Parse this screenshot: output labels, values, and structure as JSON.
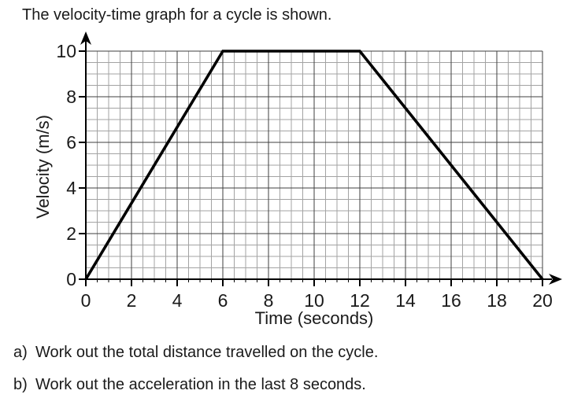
{
  "page": {
    "title": "The velocity-time graph for a cycle is shown.",
    "questions": [
      {
        "prefix": "a)",
        "text": "Work out the total distance travelled on the cycle."
      },
      {
        "prefix": "b)",
        "text": "Work out the acceleration in the last 8 seconds."
      }
    ]
  },
  "chart_data": {
    "type": "line",
    "title": "",
    "xlabel": "Time (seconds)",
    "ylabel": "Velocity (m/s)",
    "xlim": [
      0,
      20
    ],
    "ylim": [
      0,
      10
    ],
    "x_ticks": [
      0,
      2,
      4,
      6,
      8,
      10,
      12,
      14,
      16,
      18,
      20
    ],
    "y_ticks": [
      0,
      2,
      4,
      6,
      8,
      10
    ],
    "minor_step": 0.5,
    "major_step": 2,
    "grid": "major+minor",
    "legend": "none",
    "series": [
      {
        "name": "velocity",
        "points": [
          [
            0,
            0
          ],
          [
            6,
            10
          ],
          [
            12,
            10
          ],
          [
            20,
            0
          ]
        ]
      }
    ],
    "colors": {
      "line": "#000000",
      "axis": "#000000",
      "major_grid": "#3f3f3f",
      "minor_grid": "#a3a3a3",
      "text": "#1a1a1a"
    }
  }
}
